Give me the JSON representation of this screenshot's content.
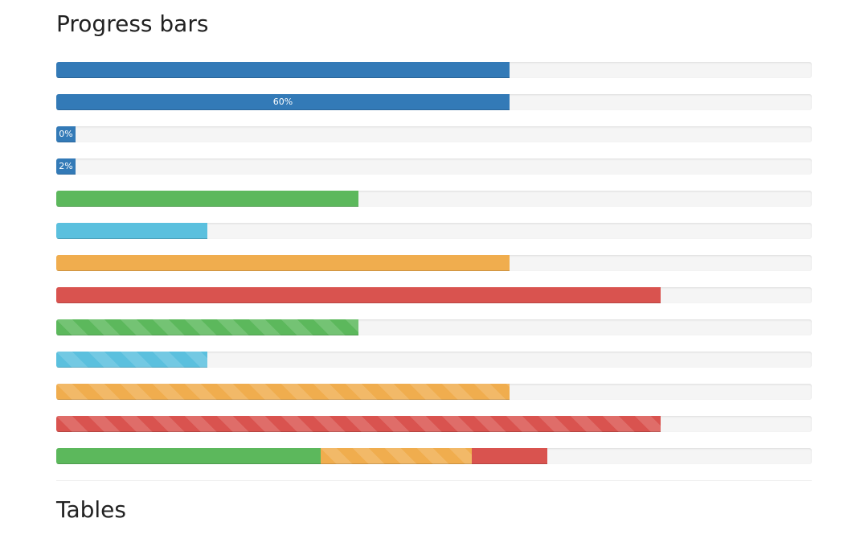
{
  "headings": {
    "progress": "Progress bars",
    "tables": "Tables"
  },
  "colors": {
    "primary": "#337ab7",
    "success": "#5cb85c",
    "info": "#5bc0de",
    "warning": "#f0ad4e",
    "danger": "#d9534f",
    "track": "#f5f5f5"
  },
  "progress_bars": [
    {
      "variant": "primary",
      "value": 60,
      "label": "",
      "striped": false
    },
    {
      "variant": "primary",
      "value": 60,
      "label": "60%",
      "striped": false
    },
    {
      "variant": "primary",
      "value": 0,
      "label": "0%",
      "striped": false
    },
    {
      "variant": "primary",
      "value": 2,
      "label": "2%",
      "striped": false
    },
    {
      "variant": "success",
      "value": 40,
      "label": "",
      "striped": false
    },
    {
      "variant": "info",
      "value": 20,
      "label": "",
      "striped": false
    },
    {
      "variant": "warning",
      "value": 60,
      "label": "",
      "striped": false
    },
    {
      "variant": "danger",
      "value": 80,
      "label": "",
      "striped": false
    },
    {
      "variant": "success",
      "value": 40,
      "label": "",
      "striped": true
    },
    {
      "variant": "info",
      "value": 20,
      "label": "",
      "striped": true
    },
    {
      "variant": "warning",
      "value": 60,
      "label": "",
      "striped": true
    },
    {
      "variant": "danger",
      "value": 80,
      "label": "",
      "striped": true
    }
  ],
  "stacked_bar": [
    {
      "variant": "success",
      "value": 35,
      "striped": false
    },
    {
      "variant": "warning",
      "value": 20,
      "striped": true
    },
    {
      "variant": "danger",
      "value": 10,
      "striped": false
    }
  ]
}
